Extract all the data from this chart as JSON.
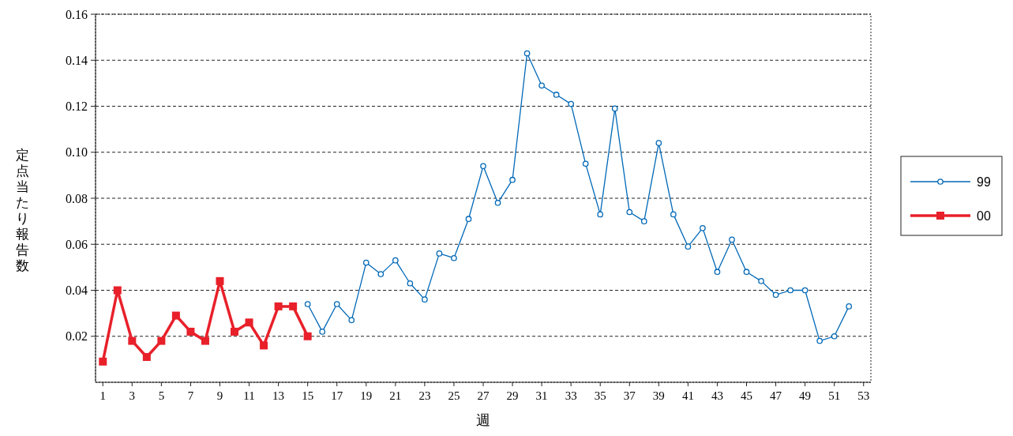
{
  "chart_data": {
    "type": "line",
    "xlabel": "週",
    "ylabel": "定点当たり報告数",
    "x": [
      1,
      2,
      3,
      4,
      5,
      6,
      7,
      8,
      9,
      10,
      11,
      12,
      13,
      14,
      15,
      16,
      17,
      18,
      19,
      20,
      21,
      22,
      23,
      24,
      25,
      26,
      27,
      28,
      29,
      30,
      31,
      32,
      33,
      34,
      35,
      36,
      37,
      38,
      39,
      40,
      41,
      42,
      43,
      44,
      45,
      46,
      47,
      48,
      49,
      50,
      51,
      52
    ],
    "xlim": [
      0.5,
      53.5
    ],
    "xticks": [
      1,
      3,
      5,
      7,
      9,
      11,
      13,
      15,
      17,
      19,
      21,
      23,
      25,
      27,
      29,
      31,
      33,
      35,
      37,
      39,
      41,
      43,
      45,
      47,
      49,
      51,
      53
    ],
    "ylim": [
      0,
      0.16
    ],
    "yticks": [
      {
        "value": 0.02,
        "label": "0.02"
      },
      {
        "value": 0.04,
        "label": "0.04"
      },
      {
        "value": 0.06,
        "label": "0.06"
      },
      {
        "value": 0.08,
        "label": "0.08"
      },
      {
        "value": 0.1,
        "label": "0.10"
      },
      {
        "value": 0.12,
        "label": "0.12"
      },
      {
        "value": 0.14,
        "label": "0.14"
      },
      {
        "value": 0.16,
        "label": "0.16"
      }
    ],
    "grid": "y",
    "legend": "right",
    "series": [
      {
        "name": "99",
        "color": "#0068b7",
        "marker": "circle",
        "values": [
          null,
          null,
          null,
          null,
          null,
          null,
          null,
          null,
          null,
          null,
          null,
          null,
          null,
          null,
          0.034,
          0.022,
          0.034,
          0.027,
          0.052,
          0.047,
          0.053,
          0.043,
          0.036,
          0.056,
          0.054,
          0.071,
          0.094,
          0.078,
          0.088,
          0.143,
          0.129,
          0.125,
          0.121,
          0.095,
          0.073,
          0.119,
          0.074,
          0.07,
          0.104,
          0.073,
          0.059,
          0.067,
          0.048,
          0.062,
          0.048,
          0.044,
          0.038,
          0.04,
          0.04,
          0.018,
          0.02,
          0.033
        ]
      },
      {
        "name": "00",
        "color": "#e8202a",
        "marker": "square",
        "values": [
          0.009,
          0.04,
          0.018,
          0.011,
          0.018,
          0.029,
          0.022,
          0.018,
          0.044,
          0.022,
          0.026,
          0.016,
          0.033,
          0.033,
          0.02,
          null,
          null,
          null,
          null,
          null,
          null,
          null,
          null,
          null,
          null,
          null,
          null,
          null,
          null,
          null,
          null,
          null,
          null,
          null,
          null,
          null,
          null,
          null,
          null,
          null,
          null,
          null,
          null,
          null,
          null,
          null,
          null,
          null,
          null,
          null,
          null,
          null
        ]
      }
    ]
  }
}
